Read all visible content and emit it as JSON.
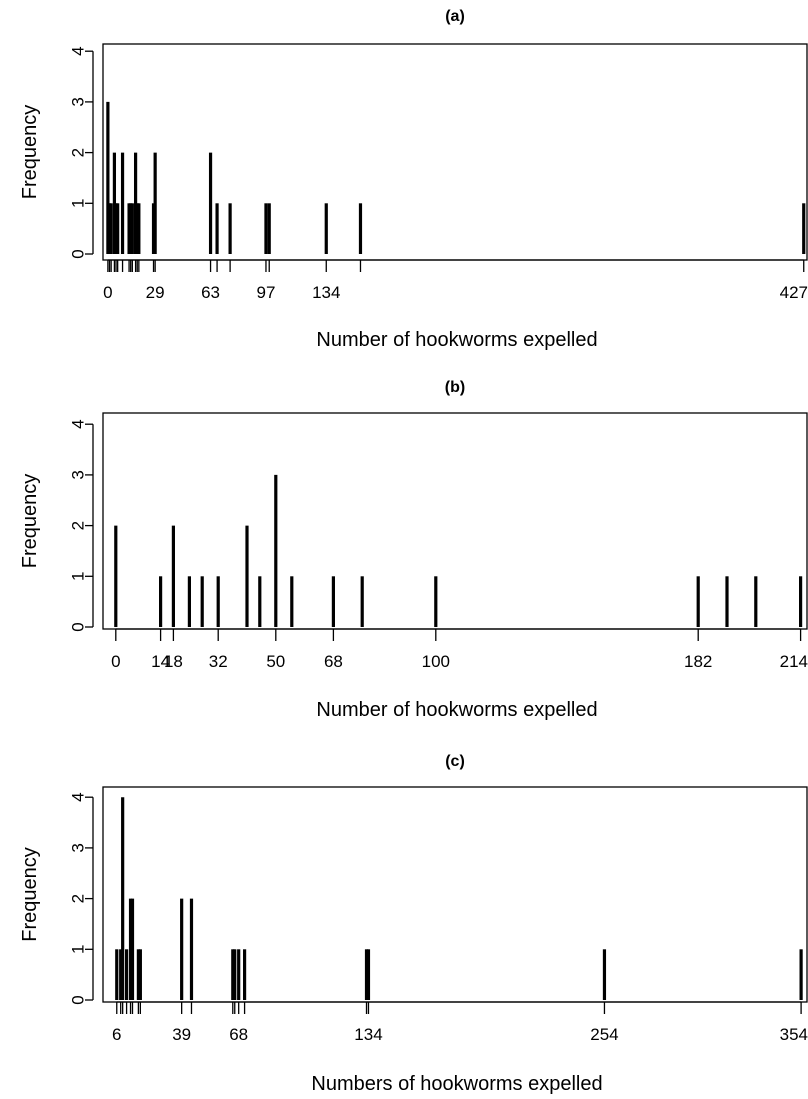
{
  "chart_data": [
    {
      "type": "bar",
      "title": "(a)",
      "xlabel": "Number of hookworms expelled",
      "ylabel": "Frequency",
      "xlim": [
        -3,
        429
      ],
      "ylim": [
        0,
        4
      ],
      "xtick_labels": [
        0,
        29,
        63,
        97,
        134,
        427
      ],
      "ytick_labels": [
        0,
        1,
        2,
        3,
        4
      ],
      "rug_values": [
        0,
        1,
        2,
        4,
        5,
        6,
        9,
        13,
        14,
        15,
        17,
        18,
        19,
        28,
        29,
        63,
        67,
        75,
        97,
        99,
        134,
        155,
        427
      ],
      "values": [
        {
          "x": 0,
          "y": 3
        },
        {
          "x": 1,
          "y": 1
        },
        {
          "x": 2,
          "y": 1
        },
        {
          "x": 4,
          "y": 2
        },
        {
          "x": 5,
          "y": 1
        },
        {
          "x": 6,
          "y": 1
        },
        {
          "x": 9,
          "y": 2
        },
        {
          "x": 13,
          "y": 1
        },
        {
          "x": 14,
          "y": 1
        },
        {
          "x": 15,
          "y": 1
        },
        {
          "x": 17,
          "y": 2
        },
        {
          "x": 18,
          "y": 1
        },
        {
          "x": 19,
          "y": 1
        },
        {
          "x": 28,
          "y": 1
        },
        {
          "x": 29,
          "y": 2
        },
        {
          "x": 63,
          "y": 2
        },
        {
          "x": 67,
          "y": 1
        },
        {
          "x": 75,
          "y": 1
        },
        {
          "x": 97,
          "y": 1
        },
        {
          "x": 99,
          "y": 1
        },
        {
          "x": 134,
          "y": 1
        },
        {
          "x": 155,
          "y": 1
        },
        {
          "x": 427,
          "y": 1
        }
      ]
    },
    {
      "type": "bar",
      "title": "(b)",
      "xlabel": "Number of hookworms expelled",
      "ylabel": "Frequency",
      "xlim": [
        -4,
        216
      ],
      "ylim": [
        0,
        4
      ],
      "xtick_labels": [
        0,
        14,
        18,
        32,
        50,
        68,
        100,
        182,
        214
      ],
      "ytick_labels": [
        0,
        1,
        2,
        3,
        4
      ],
      "rug_values": [],
      "values": [
        {
          "x": 0,
          "y": 2
        },
        {
          "x": 14,
          "y": 1
        },
        {
          "x": 18,
          "y": 2
        },
        {
          "x": 23,
          "y": 1
        },
        {
          "x": 27,
          "y": 1
        },
        {
          "x": 32,
          "y": 1
        },
        {
          "x": 41,
          "y": 2
        },
        {
          "x": 45,
          "y": 1
        },
        {
          "x": 50,
          "y": 3
        },
        {
          "x": 55,
          "y": 1
        },
        {
          "x": 68,
          "y": 1
        },
        {
          "x": 77,
          "y": 1
        },
        {
          "x": 100,
          "y": 1
        },
        {
          "x": 182,
          "y": 1
        },
        {
          "x": 191,
          "y": 1
        },
        {
          "x": 200,
          "y": 1
        },
        {
          "x": 214,
          "y": 1
        }
      ]
    },
    {
      "type": "bar",
      "title": "(c)",
      "xlabel": "Numbers of hookworms expelled",
      "ylabel": "Frequency",
      "xlim": [
        -1,
        357
      ],
      "ylim": [
        0,
        4
      ],
      "xtick_labels": [
        6,
        39,
        68,
        134,
        254,
        354
      ],
      "ytick_labels": [
        0,
        1,
        2,
        3,
        4
      ],
      "rug_values": [
        6,
        8,
        9,
        11,
        13,
        14,
        17,
        18,
        39,
        44,
        65,
        66,
        68,
        71,
        133,
        134,
        254,
        354
      ],
      "values": [
        {
          "x": 6,
          "y": 1
        },
        {
          "x": 8,
          "y": 1
        },
        {
          "x": 9,
          "y": 4
        },
        {
          "x": 11,
          "y": 1
        },
        {
          "x": 13,
          "y": 2
        },
        {
          "x": 14,
          "y": 2
        },
        {
          "x": 17,
          "y": 1
        },
        {
          "x": 18,
          "y": 1
        },
        {
          "x": 39,
          "y": 2
        },
        {
          "x": 44,
          "y": 2
        },
        {
          "x": 65,
          "y": 1
        },
        {
          "x": 66,
          "y": 1
        },
        {
          "x": 68,
          "y": 1
        },
        {
          "x": 71,
          "y": 1
        },
        {
          "x": 133,
          "y": 1
        },
        {
          "x": 134,
          "y": 1
        },
        {
          "x": 254,
          "y": 1
        },
        {
          "x": 354,
          "y": 1
        }
      ]
    }
  ]
}
